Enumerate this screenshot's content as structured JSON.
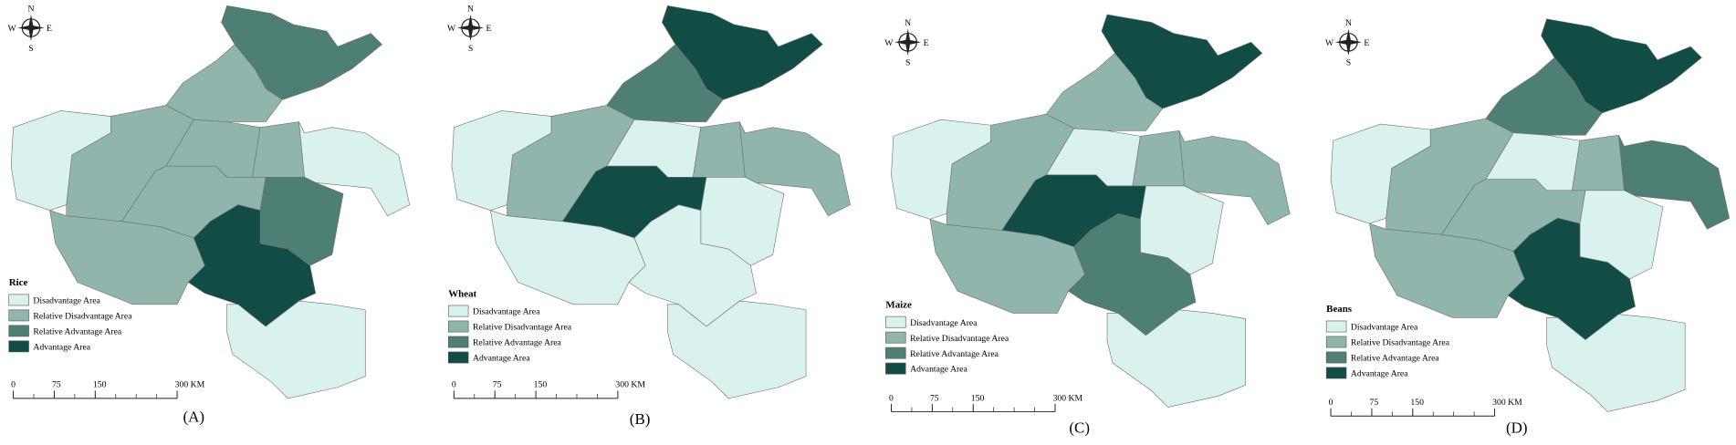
{
  "panels": [
    {
      "label": "(A)",
      "legend": {
        "title": "Rice",
        "items": [
          {
            "label": "Disadvantage Area",
            "color": "#d9f2ee"
          },
          {
            "label": "Relative Disadvantage Area",
            "color": "#8fb5ad"
          },
          {
            "label": "Relative Advantage Area",
            "color": "#4e7f75"
          },
          {
            "label": "Advantage Area",
            "color": "#124d45"
          }
        ]
      },
      "scale": {
        "ticks": [
          0,
          75,
          150,
          {
            "value": 300,
            "label": "300 KM"
          }
        ]
      },
      "compass": {
        "n": "N",
        "s": "S",
        "e": "E",
        "w": "W"
      }
    },
    {
      "label": "(B)",
      "legend": {
        "title": "Wheat",
        "items": [
          {
            "label": "Disadvantage Area",
            "color": "#d9f2ee"
          },
          {
            "label": "Relative Disadvantage Area",
            "color": "#8fb5ad"
          },
          {
            "label": "Relative Advantage Area",
            "color": "#4e7f75"
          },
          {
            "label": "Advantage Area",
            "color": "#124d45"
          }
        ]
      },
      "scale": {
        "ticks": [
          0,
          75,
          150,
          {
            "value": 300,
            "label": "300 KM"
          }
        ]
      },
      "compass": {
        "n": "N",
        "s": "S",
        "e": "E",
        "w": "W"
      }
    },
    {
      "label": "(C)",
      "legend": {
        "title": "Maize",
        "items": [
          {
            "label": "Disadvantage Area",
            "color": "#d9f2ee"
          },
          {
            "label": "Relative Disadvantage Area",
            "color": "#8fb5ad"
          },
          {
            "label": "Relative Advantage Area",
            "color": "#4e7f75"
          },
          {
            "label": "Advantage Area",
            "color": "#124d45"
          }
        ]
      },
      "scale": {
        "ticks": [
          0,
          75,
          150,
          {
            "value": 300,
            "label": "300 KM"
          }
        ]
      },
      "compass": {
        "n": "N",
        "s": "S",
        "e": "E",
        "w": "W"
      }
    },
    {
      "label": "(D)",
      "legend": {
        "title": "Beans",
        "items": [
          {
            "label": "Disadvantage Area",
            "color": "#d9f2ee"
          },
          {
            "label": "Relative Disadvantage Area",
            "color": "#8fb5ad"
          },
          {
            "label": "Relative Advantage Area",
            "color": "#4e7f75"
          },
          {
            "label": "Advantage Area",
            "color": "#124d45"
          }
        ]
      },
      "scale": {
        "ticks": [
          0,
          75,
          150,
          {
            "value": 300,
            "label": "300 KM"
          }
        ]
      },
      "compass": {
        "n": "N",
        "s": "S",
        "e": "E",
        "w": "W"
      }
    }
  ]
}
